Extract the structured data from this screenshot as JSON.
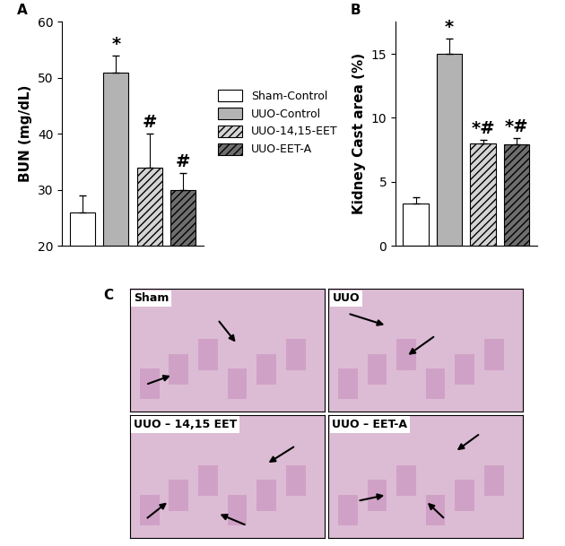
{
  "chart_data": [
    {
      "type": "bar",
      "panel": "A",
      "y_label": "BUN (mg/dL)",
      "categories": [
        "Sham-Control",
        "UUO-Control",
        "UUO-14,15-EET",
        "UUO-EET-A"
      ],
      "values": [
        26,
        51,
        34,
        30
      ],
      "errors": [
        3,
        3,
        6,
        3
      ],
      "annotations": [
        null,
        "*",
        "#",
        "#"
      ],
      "colors": [
        "#ffffff",
        "#b3b3b3",
        "#d4d4d4",
        "#6e6e6e"
      ],
      "ylim": [
        20,
        60
      ],
      "yticks": [
        20,
        30,
        40,
        50,
        60
      ],
      "tick_labels": "y",
      "legend": "center left"
    },
    {
      "type": "bar",
      "panel": "B",
      "y_label": "Kidney Cast area (%)",
      "categories": [
        "Sham-Control",
        "UUO-Control",
        "UUO-14,15-EET",
        "UUO-EET-A"
      ],
      "values": [
        3.3,
        15,
        8,
        7.9
      ],
      "errors": [
        0.5,
        1.2,
        0.3,
        0.5
      ],
      "annotations": [
        null,
        "*",
        "*#",
        "*#"
      ],
      "colors": [
        "#ffffff",
        "#b3b3b3",
        "#d4d4d4",
        "#6e6e6e"
      ],
      "ylim": [
        0,
        17.5
      ],
      "yticks": [
        0,
        5,
        10,
        15
      ],
      "tick_labels": "y"
    }
  ],
  "images": {
    "panel": "C",
    "labels": [
      "Sham",
      "UUO",
      "UUO – 14,15 EET",
      "UUO – EET-A"
    ]
  }
}
